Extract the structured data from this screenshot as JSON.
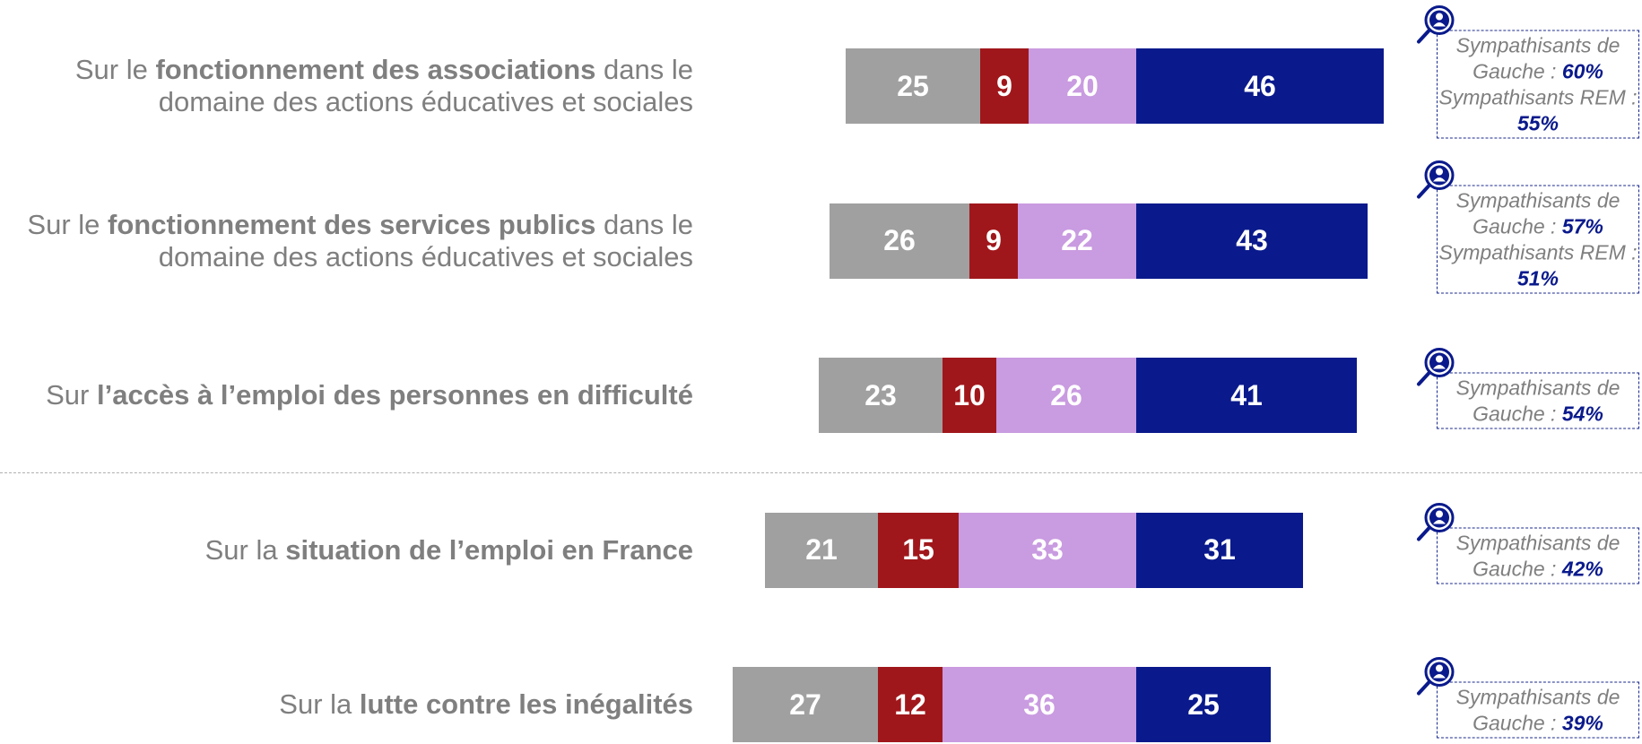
{
  "chart_data": {
    "type": "diverging_bar",
    "categories": [
      {
        "parts": [
          {
            "text": "Sur le",
            "bold": false
          },
          {
            "text": "fonctionnement des associations",
            "bold": true
          },
          {
            "text": "dans le domaine des actions éducatives et sociales",
            "bold": false
          }
        ]
      },
      {
        "parts": [
          {
            "text": "Sur le",
            "bold": false
          },
          {
            "text": "fonctionnement des services publics",
            "bold": true
          },
          {
            "text": "dans le domaine des actions éducatives et sociales",
            "bold": false
          }
        ]
      },
      {
        "parts": [
          {
            "text": "Sur",
            "bold": false
          },
          {
            "text": "l’accès à l’emploi des personnes en difficulté",
            "bold": true
          }
        ]
      },
      {
        "parts": [
          {
            "text": "Sur la",
            "bold": false
          },
          {
            "text": "situation de l’emploi en France",
            "bold": true
          }
        ]
      },
      {
        "parts": [
          {
            "text": "Sur la",
            "bold": false
          },
          {
            "text": "lutte contre les inégalités",
            "bold": true
          }
        ]
      }
    ],
    "series": [
      {
        "color": "#a0a0a0",
        "side": "left",
        "values": [
          25,
          26,
          23,
          21,
          27
        ]
      },
      {
        "color": "#a0171b",
        "side": "left",
        "values": [
          9,
          9,
          10,
          15,
          12
        ]
      },
      {
        "color": "#c99be0",
        "side": "left",
        "values": [
          20,
          22,
          26,
          33,
          36
        ]
      },
      {
        "color": "#0a1a8c",
        "side": "right",
        "values": [
          46,
          43,
          41,
          31,
          25
        ]
      }
    ],
    "annotations": [
      {
        "items": [
          {
            "label": "Sympathisants de Gauche :",
            "value": 60,
            "value_label": "60%"
          },
          {
            "label": "Sympathisants REM :",
            "value": 55,
            "value_label": "55%"
          }
        ]
      },
      {
        "items": [
          {
            "label": "Sympathisants de Gauche :",
            "value": 57,
            "value_label": "57%"
          },
          {
            "label": "Sympathisants REM :",
            "value": 51,
            "value_label": "51%"
          }
        ]
      },
      {
        "items": [
          {
            "label": "Sympathisants de Gauche :",
            "value": 54,
            "value_label": "54%"
          }
        ]
      },
      {
        "items": [
          {
            "label": "Sympathisants de Gauche :",
            "value": 42,
            "value_label": "42%"
          }
        ]
      },
      {
        "items": [
          {
            "label": "Sympathisants de Gauche :",
            "value": 39,
            "value_label": "39%"
          }
        ]
      }
    ],
    "separator_after": 2
  }
}
